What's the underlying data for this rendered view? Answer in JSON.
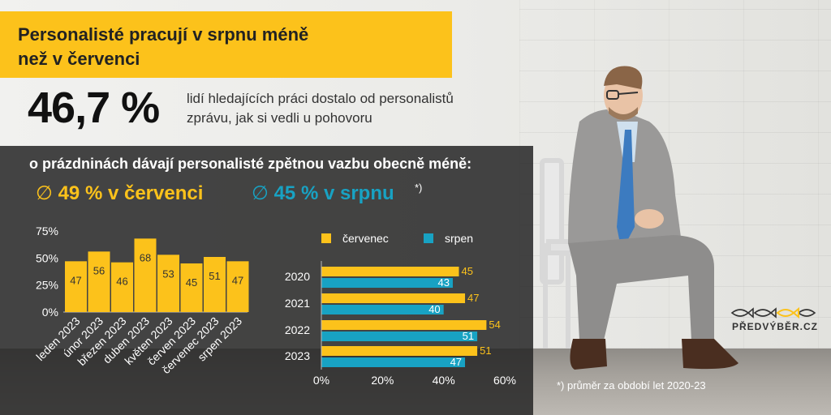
{
  "title": "Personalisté pracují v srpnu méně\nnež v červenci",
  "headline": {
    "value": "46,7 %",
    "description": "lidí hledajících práci dostalo od personalistů\nzprávu, jak si vedli u  pohovoru"
  },
  "subtitle": "o prázdninách dávají personalisté zpětnou vazbu obecně méně:",
  "averages": {
    "symbol": "∅",
    "july": "49 % v červenci",
    "august": "45 % v srpnu",
    "note": "*)"
  },
  "footnote": "*) průměr za období let 2020-23",
  "logo": {
    "text": "PŘEDVÝBĚR.CZ",
    "icon": "fish-logo-icon"
  },
  "colors": {
    "yellow": "#fcc21b",
    "teal": "#18a2c3",
    "panel": "#262626"
  },
  "chart_data": [
    {
      "type": "bar",
      "categories": [
        "leden 2023",
        "únor 2023",
        "březen 2023",
        "duben 2023",
        "květen 2023",
        "červen 2023",
        "červenec 2023",
        "srpen 2023"
      ],
      "values": [
        47,
        56,
        46,
        68,
        53,
        45,
        51,
        47
      ],
      "y_ticks": [
        "0%",
        "25%",
        "50%",
        "75%"
      ],
      "ylim": [
        0,
        75
      ],
      "grid": false,
      "data_labels": true
    },
    {
      "type": "bar",
      "orientation": "horizontal",
      "categories": [
        "2020",
        "2021",
        "2022",
        "2023"
      ],
      "series": [
        {
          "name": "červenec",
          "color": "#fcc21b",
          "values": [
            45,
            47,
            54,
            51
          ]
        },
        {
          "name": "srpen",
          "color": "#18a2c3",
          "values": [
            43,
            40,
            51,
            47
          ]
        }
      ],
      "x_ticks": [
        "0%",
        "20%",
        "40%",
        "60%"
      ],
      "xlim": [
        0,
        60
      ],
      "legend": "top",
      "data_labels": true
    }
  ]
}
